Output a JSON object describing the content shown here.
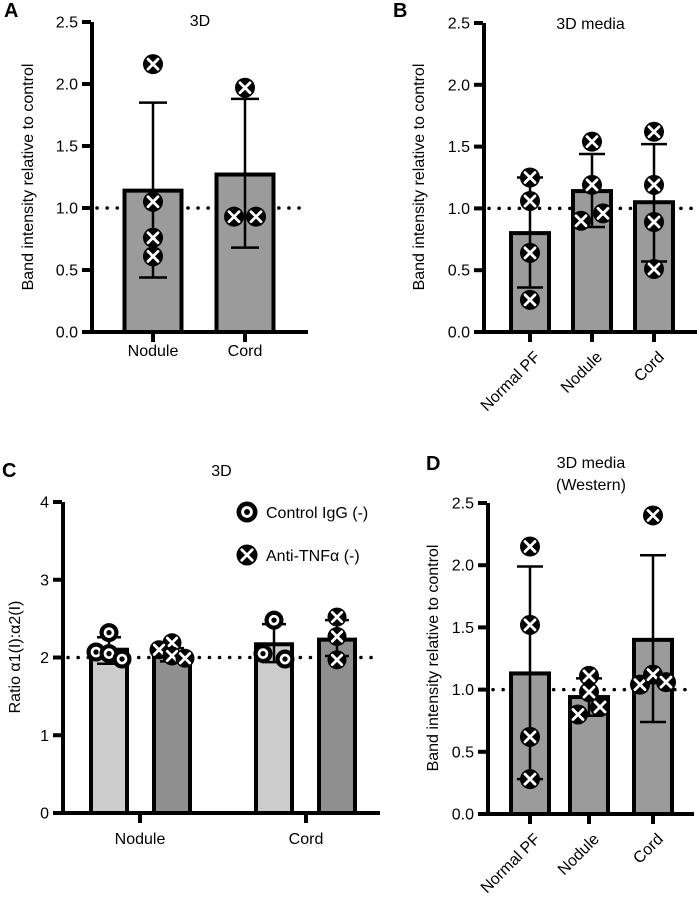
{
  "figure": {
    "background": "#ffffff",
    "axis_color": "#000000",
    "reference_line_style": "dotted"
  },
  "chart_data": [
    {
      "id": "A",
      "panel_label": "A",
      "type": "bar",
      "title_lines": [
        "3D"
      ],
      "ylabel": "Band intensity relative to control",
      "ylim": [
        0,
        2.5
      ],
      "yticks": [
        0,
        0.5,
        1.0,
        1.5,
        2.0,
        2.5
      ],
      "ytick_labels": [
        "0.0",
        "0.5",
        "1.0",
        "1.5",
        "2.0",
        "2.5"
      ],
      "reference_line": 1.0,
      "grid": false,
      "x_labels_rotated": false,
      "categories": [
        "Nodule",
        "Cord"
      ],
      "series": [
        {
          "name": "Anti-TNFα (-)",
          "marker": "circle-x",
          "bar_color": "#9b9b9b",
          "values": [
            1.14,
            1.27
          ],
          "error_low": [
            0.44,
            0.68
          ],
          "error_high": [
            1.85,
            1.88
          ],
          "points": [
            [
              2.16,
              1.05,
              0.76,
              0.61
            ],
            [
              1.97,
              0.93,
              0.93
            ]
          ]
        }
      ],
      "legend": null
    },
    {
      "id": "B",
      "panel_label": "B",
      "type": "bar",
      "title_lines": [
        "3D media"
      ],
      "ylabel": "Band intensity relative to control",
      "ylim": [
        0,
        2.5
      ],
      "yticks": [
        0,
        0.5,
        1.0,
        1.5,
        2.0,
        2.5
      ],
      "ytick_labels": [
        "0.0",
        "0.5",
        "1.0",
        "1.5",
        "2.0",
        "2.5"
      ],
      "reference_line": 1.0,
      "grid": false,
      "x_labels_rotated": true,
      "categories": [
        "Normal PF",
        "Nodule",
        "Cord"
      ],
      "series": [
        {
          "name": "Anti-TNFα (-)",
          "marker": "circle-x",
          "bar_color": "#9b9b9b",
          "values": [
            0.8,
            1.14,
            1.05
          ],
          "error_low": [
            0.36,
            0.85,
            0.57
          ],
          "error_high": [
            1.25,
            1.44,
            1.52
          ],
          "points": [
            [
              1.25,
              1.06,
              0.64,
              0.26
            ],
            [
              1.54,
              1.19,
              0.9,
              0.96
            ],
            [
              1.62,
              1.19,
              0.89,
              0.51
            ]
          ]
        }
      ],
      "legend": null
    },
    {
      "id": "C",
      "panel_label": "C",
      "type": "bar",
      "title_lines": [
        "3D"
      ],
      "ylabel": "Ratio α1(I):α2(I)",
      "ylim": [
        0,
        4
      ],
      "yticks": [
        0,
        1,
        2,
        3,
        4
      ],
      "ytick_labels": [
        "0",
        "1",
        "2",
        "3",
        "4"
      ],
      "reference_line": 2.0,
      "grid": false,
      "x_labels_rotated": false,
      "categories": [
        "Nodule",
        "Cord"
      ],
      "series": [
        {
          "name": "Control IgG (-)",
          "marker": "circle-dot",
          "bar_color": "#cccccc",
          "values": [
            2.1,
            2.17
          ],
          "error_low": [
            1.92,
            1.94
          ],
          "error_high": [
            2.26,
            2.43
          ],
          "points": [
            [
              2.32,
              2.07,
              2.05,
              1.98
            ],
            [
              2.48,
              2.05,
              1.98
            ]
          ]
        },
        {
          "name": "Anti-TNFα (-)",
          "marker": "circle-x",
          "bar_color": "#8f8f8f",
          "values": [
            2.02,
            2.23
          ],
          "error_low": [
            1.95,
            2.02
          ],
          "error_high": [
            2.12,
            2.48
          ],
          "points": [
            [
              2.19,
              2.1,
              2.02,
              1.99
            ],
            [
              2.52,
              2.27,
              1.97
            ]
          ]
        }
      ],
      "legend": {
        "position": "top-right",
        "entries": [
          {
            "label": "Control IgG (-)",
            "marker": "circle-dot"
          },
          {
            "label": "Anti-TNFα (-)",
            "marker": "circle-x"
          }
        ]
      }
    },
    {
      "id": "D",
      "panel_label": "D",
      "type": "bar",
      "title_lines": [
        "3D media",
        "(Western)"
      ],
      "ylabel": "Band intensity relative to control",
      "ylim": [
        0,
        2.5
      ],
      "yticks": [
        0,
        0.5,
        1.0,
        1.5,
        2.0,
        2.5
      ],
      "ytick_labels": [
        "0.0",
        "0.5",
        "1.0",
        "1.5",
        "2.0",
        "2.5"
      ],
      "reference_line": 1.0,
      "grid": false,
      "x_labels_rotated": true,
      "categories": [
        "Normal PF",
        "Nodule",
        "Cord"
      ],
      "series": [
        {
          "name": "Anti-TNFα (-)",
          "marker": "circle-x",
          "bar_color": "#9b9b9b",
          "values": [
            1.13,
            0.94,
            1.4
          ],
          "error_low": [
            0.28,
            0.79,
            0.74
          ],
          "error_high": [
            1.99,
            1.09,
            2.08
          ],
          "points": [
            [
              2.15,
              1.52,
              0.62,
              0.28
            ],
            [
              1.11,
              0.98,
              0.8,
              0.86
            ],
            [
              2.4,
              1.04,
              1.12,
              1.06
            ]
          ]
        }
      ],
      "legend": null
    }
  ]
}
